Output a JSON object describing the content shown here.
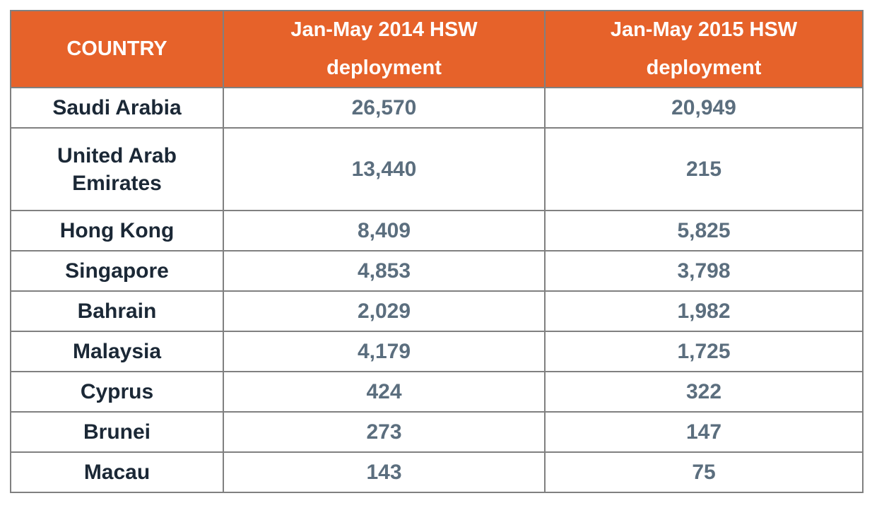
{
  "table": {
    "columns": [
      {
        "label": "COUNTRY"
      },
      {
        "label": "Jan-May 2014 HSW\ndeployment"
      },
      {
        "label": "Jan-May 2015 HSW\ndeployment"
      }
    ],
    "rows": [
      {
        "country": "Saudi Arabia",
        "v2014": "26,570",
        "v2015": "20,949"
      },
      {
        "country": "United Arab Emirates",
        "v2014": "13,440",
        "v2015": "215"
      },
      {
        "country": "Hong Kong",
        "v2014": "8,409",
        "v2015": "5,825"
      },
      {
        "country": "Singapore",
        "v2014": "4,853",
        "v2015": "3,798"
      },
      {
        "country": "Bahrain",
        "v2014": "2,029",
        "v2015": "1,982"
      },
      {
        "country": "Malaysia",
        "v2014": "4,179",
        "v2015": "1,725"
      },
      {
        "country": "Cyprus",
        "v2014": "424",
        "v2015": "322"
      },
      {
        "country": "Brunei",
        "v2014": "273",
        "v2015": "147"
      },
      {
        "country": "Macau",
        "v2014": "143",
        "v2015": "75"
      }
    ]
  },
  "chart_data": {
    "type": "table",
    "columns": [
      "COUNTRY",
      "Jan-May 2014 HSW deployment",
      "Jan-May 2015 HSW deployment"
    ],
    "rows": [
      [
        "Saudi Arabia",
        26570,
        20949
      ],
      [
        "United Arab Emirates",
        13440,
        215
      ],
      [
        "Hong Kong",
        8409,
        5825
      ],
      [
        "Singapore",
        4853,
        3798
      ],
      [
        "Bahrain",
        2029,
        1982
      ],
      [
        "Malaysia",
        4179,
        1725
      ],
      [
        "Cyprus",
        424,
        322
      ],
      [
        "Brunei",
        273,
        147
      ],
      [
        "Macau",
        143,
        75
      ]
    ]
  },
  "colors": {
    "header_bg": "#E6622A",
    "header_text": "#FFFFFF",
    "border": "#808080",
    "country_text": "#1B2836",
    "value_text": "#5B6E7E",
    "page_bg": "#FFFFFF"
  }
}
